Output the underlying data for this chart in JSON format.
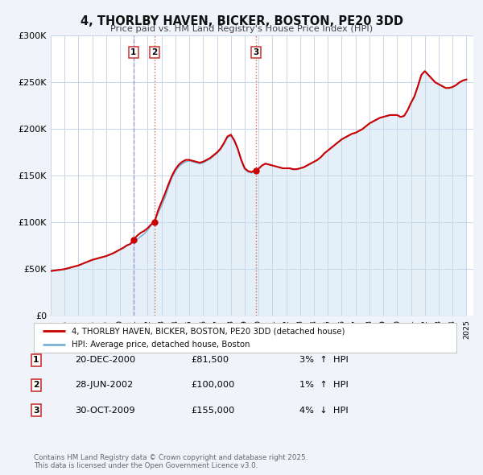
{
  "title": "4, THORLBY HAVEN, BICKER, BOSTON, PE20 3DD",
  "subtitle": "Price paid vs. HM Land Registry's House Price Index (HPI)",
  "background_color": "#f0f4fa",
  "plot_bg_color": "#ffffff",
  "grid_color": "#c8d4e8",
  "red_line_color": "#cc0000",
  "blue_line_color": "#7ab0d4",
  "blue_fill_color": "#c5ddf0",
  "ylim": [
    0,
    300000
  ],
  "yticks": [
    0,
    50000,
    100000,
    150000,
    200000,
    250000,
    300000
  ],
  "ytick_labels": [
    "£0",
    "£50K",
    "£100K",
    "£150K",
    "£200K",
    "£250K",
    "£300K"
  ],
  "legend1": "4, THORLBY HAVEN, BICKER, BOSTON, PE20 3DD (detached house)",
  "legend2": "HPI: Average price, detached house, Boston",
  "transactions": [
    {
      "num": 1,
      "date": "20-DEC-2000",
      "date_val": 2000.97,
      "price": 81500,
      "pct": "3%",
      "dir": "↑"
    },
    {
      "num": 2,
      "date": "28-JUN-2002",
      "date_val": 2002.49,
      "price": 100000,
      "pct": "1%",
      "dir": "↑"
    },
    {
      "num": 3,
      "date": "30-OCT-2009",
      "date_val": 2009.83,
      "price": 155000,
      "pct": "4%",
      "dir": "↓"
    }
  ],
  "footnote1": "Contains HM Land Registry data © Crown copyright and database right 2025.",
  "footnote2": "This data is licensed under the Open Government Licence v3.0.",
  "hpi_years": [
    1995.0,
    1995.25,
    1995.5,
    1995.75,
    1996.0,
    1996.25,
    1996.5,
    1996.75,
    1997.0,
    1997.25,
    1997.5,
    1997.75,
    1998.0,
    1998.25,
    1998.5,
    1998.75,
    1999.0,
    1999.25,
    1999.5,
    1999.75,
    2000.0,
    2000.25,
    2000.5,
    2000.75,
    2001.0,
    2001.25,
    2001.5,
    2001.75,
    2002.0,
    2002.25,
    2002.5,
    2002.75,
    2003.0,
    2003.25,
    2003.5,
    2003.75,
    2004.0,
    2004.25,
    2004.5,
    2004.75,
    2005.0,
    2005.25,
    2005.5,
    2005.75,
    2006.0,
    2006.25,
    2006.5,
    2006.75,
    2007.0,
    2007.25,
    2007.5,
    2007.75,
    2008.0,
    2008.25,
    2008.5,
    2008.75,
    2009.0,
    2009.25,
    2009.5,
    2009.75,
    2010.0,
    2010.25,
    2010.5,
    2010.75,
    2011.0,
    2011.25,
    2011.5,
    2011.75,
    2012.0,
    2012.25,
    2012.5,
    2012.75,
    2013.0,
    2013.25,
    2013.5,
    2013.75,
    2014.0,
    2014.25,
    2014.5,
    2014.75,
    2015.0,
    2015.25,
    2015.5,
    2015.75,
    2016.0,
    2016.25,
    2016.5,
    2016.75,
    2017.0,
    2017.25,
    2017.5,
    2017.75,
    2018.0,
    2018.25,
    2018.5,
    2018.75,
    2019.0,
    2019.25,
    2019.5,
    2019.75,
    2020.0,
    2020.25,
    2020.5,
    2020.75,
    2021.0,
    2021.25,
    2021.5,
    2021.75,
    2022.0,
    2022.25,
    2022.5,
    2022.75,
    2023.0,
    2023.25,
    2023.5,
    2023.75,
    2024.0,
    2024.25,
    2024.5,
    2024.75,
    2025.0
  ],
  "hpi_vals": [
    48000,
    48500,
    49000,
    49500,
    50000,
    51000,
    52000,
    53000,
    54000,
    55500,
    57000,
    58500,
    60000,
    61000,
    62000,
    63000,
    64000,
    65500,
    67000,
    69000,
    71000,
    73000,
    75500,
    77000,
    79000,
    82000,
    85000,
    88000,
    92000,
    97000,
    103000,
    110000,
    118000,
    127000,
    138000,
    148000,
    155000,
    160000,
    163000,
    165000,
    166000,
    165000,
    164000,
    163000,
    164000,
    166000,
    168000,
    171000,
    174000,
    178000,
    184000,
    191000,
    193000,
    187000,
    178000,
    166000,
    157000,
    154000,
    153000,
    155000,
    158000,
    161000,
    163000,
    162000,
    161000,
    160000,
    159000,
    158000,
    158000,
    158000,
    157000,
    157000,
    158000,
    159000,
    161000,
    163000,
    165000,
    167000,
    170000,
    174000,
    177000,
    180000,
    183000,
    186000,
    189000,
    191000,
    193000,
    195000,
    196000,
    198000,
    200000,
    203000,
    206000,
    208000,
    210000,
    212000,
    213000,
    214000,
    215000,
    215000,
    215000,
    213000,
    214000,
    220000,
    228000,
    235000,
    246000,
    258000,
    262000,
    258000,
    254000,
    250000,
    248000,
    246000,
    244000,
    244000,
    245000,
    247000,
    250000,
    252000,
    253000
  ],
  "red_years": [
    1995.0,
    1995.25,
    1995.5,
    1995.75,
    1996.0,
    1996.25,
    1996.5,
    1996.75,
    1997.0,
    1997.25,
    1997.5,
    1997.75,
    1998.0,
    1998.25,
    1998.5,
    1998.75,
    1999.0,
    1999.25,
    1999.5,
    1999.75,
    2000.0,
    2000.25,
    2000.5,
    2000.75,
    2000.97,
    2001.25,
    2001.5,
    2001.75,
    2002.0,
    2002.25,
    2002.49,
    2002.75,
    2003.0,
    2003.25,
    2003.5,
    2003.75,
    2004.0,
    2004.25,
    2004.5,
    2004.75,
    2005.0,
    2005.25,
    2005.5,
    2005.75,
    2006.0,
    2006.25,
    2006.5,
    2006.75,
    2007.0,
    2007.25,
    2007.5,
    2007.75,
    2008.0,
    2008.25,
    2008.5,
    2008.75,
    2009.0,
    2009.25,
    2009.5,
    2009.75,
    2009.83,
    2010.25,
    2010.5,
    2010.75,
    2011.0,
    2011.25,
    2011.5,
    2011.75,
    2012.0,
    2012.25,
    2012.5,
    2012.75,
    2013.0,
    2013.25,
    2013.5,
    2013.75,
    2014.0,
    2014.25,
    2014.5,
    2014.75,
    2015.0,
    2015.25,
    2015.5,
    2015.75,
    2016.0,
    2016.25,
    2016.5,
    2016.75,
    2017.0,
    2017.25,
    2017.5,
    2017.75,
    2018.0,
    2018.25,
    2018.5,
    2018.75,
    2019.0,
    2019.25,
    2019.5,
    2019.75,
    2020.0,
    2020.25,
    2020.5,
    2020.75,
    2021.0,
    2021.25,
    2021.5,
    2021.75,
    2022.0,
    2022.25,
    2022.5,
    2022.75,
    2023.0,
    2023.25,
    2023.5,
    2023.75,
    2024.0,
    2024.25,
    2024.5,
    2024.75,
    2025.0
  ],
  "red_vals": [
    48000,
    48500,
    49000,
    49500,
    50000,
    51000,
    52000,
    53000,
    54000,
    55500,
    57000,
    58500,
    60000,
    61000,
    62000,
    63000,
    64000,
    65500,
    67000,
    69000,
    71000,
    73000,
    75500,
    77000,
    81500,
    86000,
    89000,
    91000,
    94000,
    98000,
    100000,
    113000,
    122000,
    131000,
    141000,
    150000,
    157000,
    162000,
    165000,
    167000,
    167000,
    166000,
    165000,
    164000,
    165000,
    167000,
    169000,
    172000,
    175000,
    179000,
    185000,
    192000,
    194000,
    188000,
    179000,
    167000,
    158000,
    155000,
    154000,
    156000,
    155000,
    161000,
    163000,
    162000,
    161000,
    160000,
    159000,
    158000,
    158000,
    158000,
    157000,
    157000,
    158000,
    159000,
    161000,
    163000,
    165000,
    167000,
    170000,
    174000,
    177000,
    180000,
    183000,
    186000,
    189000,
    191000,
    193000,
    195000,
    196000,
    198000,
    200000,
    203000,
    206000,
    208000,
    210000,
    212000,
    213000,
    214000,
    215000,
    215000,
    215000,
    213000,
    214000,
    220000,
    228000,
    235000,
    246000,
    258000,
    262000,
    258000,
    254000,
    250000,
    248000,
    246000,
    244000,
    244000,
    245000,
    247000,
    250000,
    252000,
    253000
  ],
  "vline1_color": "#9999cc",
  "vline1_style": "--",
  "vline2_color": "#cc6666",
  "vline2_style": ":",
  "vline3_color": "#cc6666",
  "vline3_style": ":"
}
